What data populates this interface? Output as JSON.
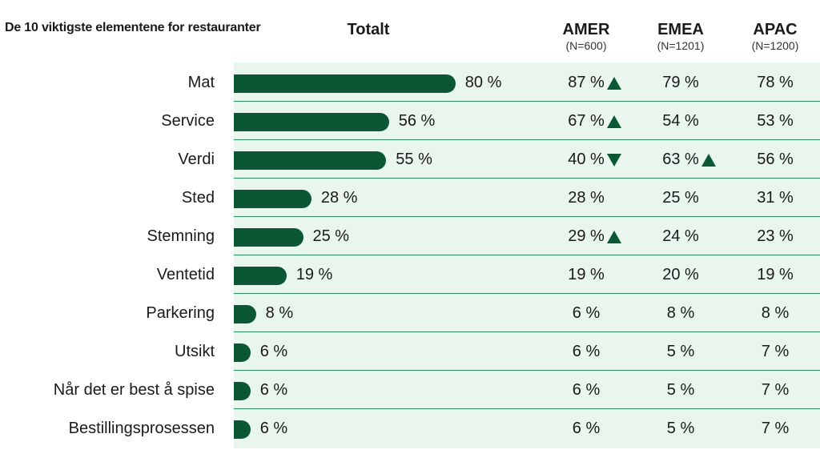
{
  "chart_data": {
    "type": "table",
    "title": "De 10 viktigste elementene for restauranter",
    "columns": [
      {
        "name": "Totalt",
        "n": ""
      },
      {
        "name": "AMER",
        "n": "(N=600)"
      },
      {
        "name": "EMEA",
        "n": "(N=1201)"
      },
      {
        "name": "APAC",
        "n": "(N=1200)"
      }
    ],
    "rows": [
      {
        "label": "Mat",
        "total": 80,
        "total_text": "80 %",
        "amer": "87 %",
        "amer_sig": "up",
        "emea": "79 %",
        "emea_sig": "",
        "apac": "78 %"
      },
      {
        "label": "Service",
        "total": 56,
        "total_text": "56 %",
        "amer": "67 %",
        "amer_sig": "up",
        "emea": "54 %",
        "emea_sig": "",
        "apac": "53 %"
      },
      {
        "label": "Verdi",
        "total": 55,
        "total_text": "55 %",
        "amer": "40 %",
        "amer_sig": "down",
        "emea": "63 %",
        "emea_sig": "up",
        "apac": "56 %"
      },
      {
        "label": "Sted",
        "total": 28,
        "total_text": "28 %",
        "amer": "28 %",
        "amer_sig": "",
        "emea": "25 %",
        "emea_sig": "",
        "apac": "31 %"
      },
      {
        "label": "Stemning",
        "total": 25,
        "total_text": "25 %",
        "amer": "29 %",
        "amer_sig": "up",
        "emea": "24 %",
        "emea_sig": "",
        "apac": "23 %"
      },
      {
        "label": "Ventetid",
        "total": 19,
        "total_text": "19 %",
        "amer": "19 %",
        "amer_sig": "",
        "emea": "20 %",
        "emea_sig": "",
        "apac": "19 %"
      },
      {
        "label": "Parkering",
        "total": 8,
        "total_text": "8 %",
        "amer": "6 %",
        "amer_sig": "",
        "emea": "8 %",
        "emea_sig": "",
        "apac": "8 %"
      },
      {
        "label": "Utsikt",
        "total": 6,
        "total_text": "6 %",
        "amer": "6 %",
        "amer_sig": "",
        "emea": "5 %",
        "emea_sig": "",
        "apac": "7 %"
      },
      {
        "label": "Når det er best å spise",
        "total": 6,
        "total_text": "6 %",
        "amer": "6 %",
        "amer_sig": "",
        "emea": "5 %",
        "emea_sig": "",
        "apac": "7 %"
      },
      {
        "label": "Bestillingsprosessen",
        "total": 6,
        "total_text": "6 %",
        "amer": "6 %",
        "amer_sig": "",
        "emea": "5 %",
        "emea_sig": "",
        "apac": "7 %"
      }
    ],
    "colors": {
      "bar": "#0b5733",
      "panel": "#e8f6ee",
      "separator": "#2f8a5a"
    }
  }
}
